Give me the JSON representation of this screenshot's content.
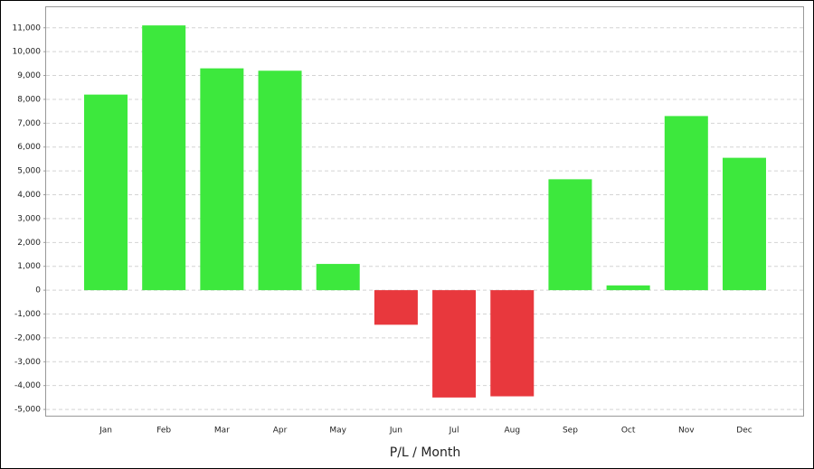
{
  "chart_data": {
    "type": "bar",
    "x_label": "P/L / Month",
    "categories": [
      "Jan",
      "Feb",
      "Mar",
      "Apr",
      "May",
      "Jun",
      "Jul",
      "Aug",
      "Sep",
      "Oct",
      "Nov",
      "Dec"
    ],
    "values": [
      8200,
      11100,
      9300,
      9200,
      1100,
      -1450,
      -4500,
      -4450,
      4650,
      200,
      7300,
      5550
    ],
    "positive_color": "#3de83d",
    "negative_color": "#e8383d",
    "ylim": [
      -5300,
      11900
    ],
    "yticks": [
      {
        "value": -5000,
        "label": "-5,000"
      },
      {
        "value": -4000,
        "label": "-4,000"
      },
      {
        "value": -3000,
        "label": "-3,000"
      },
      {
        "value": -2000,
        "label": "-2,000"
      },
      {
        "value": -1000,
        "label": "-1,000"
      },
      0,
      {
        "value": 1000,
        "label": "1,000"
      },
      {
        "value": 2000,
        "label": "2,000"
      },
      {
        "value": 3000,
        "label": "3,000"
      },
      {
        "value": 4000,
        "label": "4,000"
      },
      {
        "value": 5000,
        "label": "5,000"
      },
      {
        "value": 6000,
        "label": "6,000"
      },
      {
        "value": 7000,
        "label": "7,000"
      },
      {
        "value": 8000,
        "label": "8,000"
      },
      {
        "value": 9000,
        "label": "9,000"
      },
      {
        "value": 10000,
        "label": "10,000"
      },
      {
        "value": 11000,
        "label": "11,000"
      }
    ],
    "grid": true
  }
}
